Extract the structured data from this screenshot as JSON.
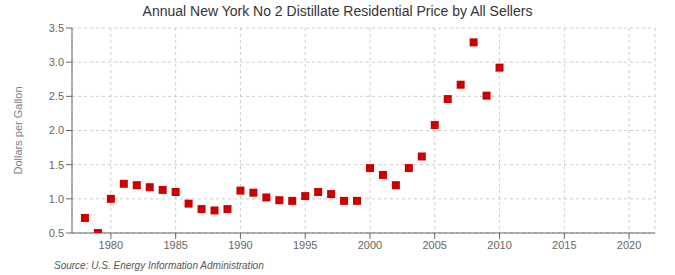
{
  "chart_data": {
    "type": "scatter",
    "title": "Annual New York No 2 Distillate Residential Price by All Sellers",
    "ylabel": "Dollars per Gallon",
    "annotations": [
      "Source: U.S. Energy Information Administration"
    ],
    "x": [
      1978,
      1979,
      1980,
      1981,
      1982,
      1983,
      1984,
      1985,
      1986,
      1987,
      1988,
      1989,
      1990,
      1991,
      1992,
      1993,
      1994,
      1995,
      1996,
      1997,
      1998,
      1999,
      2000,
      2001,
      2002,
      2003,
      2004,
      2005,
      2006,
      2007,
      2008,
      2009,
      2010
    ],
    "values": [
      0.72,
      0.5,
      1.0,
      1.22,
      1.2,
      1.17,
      1.13,
      1.1,
      0.93,
      0.85,
      0.83,
      0.85,
      1.12,
      1.09,
      1.02,
      0.98,
      0.97,
      1.04,
      1.1,
      1.07,
      0.97,
      0.97,
      1.45,
      1.35,
      1.2,
      1.45,
      1.62,
      2.08,
      2.46,
      2.67,
      3.29,
      2.51,
      2.92
    ],
    "color": "#cc0000",
    "marker": "square",
    "xlim": [
      1977,
      2022
    ],
    "ylim": [
      0.5,
      3.5
    ],
    "xticks": [
      1980,
      1985,
      1990,
      1995,
      2000,
      2005,
      2010,
      2015,
      2020
    ],
    "yticks": [
      0.5,
      {
        "value": 1,
        "label": "1.0"
      },
      1.5,
      {
        "value": 2,
        "label": "2.0"
      },
      2.5,
      {
        "value": 3,
        "label": "3.0"
      },
      3.5
    ],
    "grid": true
  }
}
